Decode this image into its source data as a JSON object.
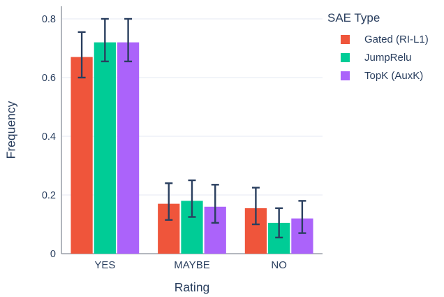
{
  "chart_data": {
    "type": "bar",
    "title": "",
    "xlabel": "Rating",
    "ylabel": "Frequency",
    "categories": [
      "YES",
      "MAYBE",
      "NO"
    ],
    "series": [
      {
        "name": "Gated (RI-L1)",
        "color": "#EF553B",
        "values": [
          0.67,
          0.17,
          0.155
        ],
        "error_high": [
          0.755,
          0.24,
          0.225
        ],
        "error_low": [
          0.6,
          0.115,
          0.1
        ]
      },
      {
        "name": "JumpRelu",
        "color": "#00CC96",
        "values": [
          0.72,
          0.18,
          0.105
        ],
        "error_high": [
          0.8,
          0.25,
          0.155
        ],
        "error_low": [
          0.655,
          0.125,
          0.055
        ]
      },
      {
        "name": "TopK (AuxK)",
        "color": "#AB63FA",
        "values": [
          0.72,
          0.16,
          0.12
        ],
        "error_high": [
          0.8,
          0.235,
          0.18
        ],
        "error_low": [
          0.655,
          0.105,
          0.07
        ]
      }
    ],
    "legend": {
      "title": "SAE Type",
      "position": "top-right"
    },
    "yticks": [
      0,
      0.2,
      0.4,
      0.6,
      0.8
    ],
    "ytick_labels": [
      "0",
      "0.2",
      "0.4",
      "0.6",
      "0.8"
    ],
    "ylim": [
      0,
      0.845
    ],
    "grid": true,
    "bar_group_fraction": 0.8,
    "error_bar_color": "#2a3f5f",
    "text_color": "#2a3f5f",
    "grid_color": "#e9eef5",
    "axis_line_color": "#878e99",
    "background": "#ffffff"
  }
}
